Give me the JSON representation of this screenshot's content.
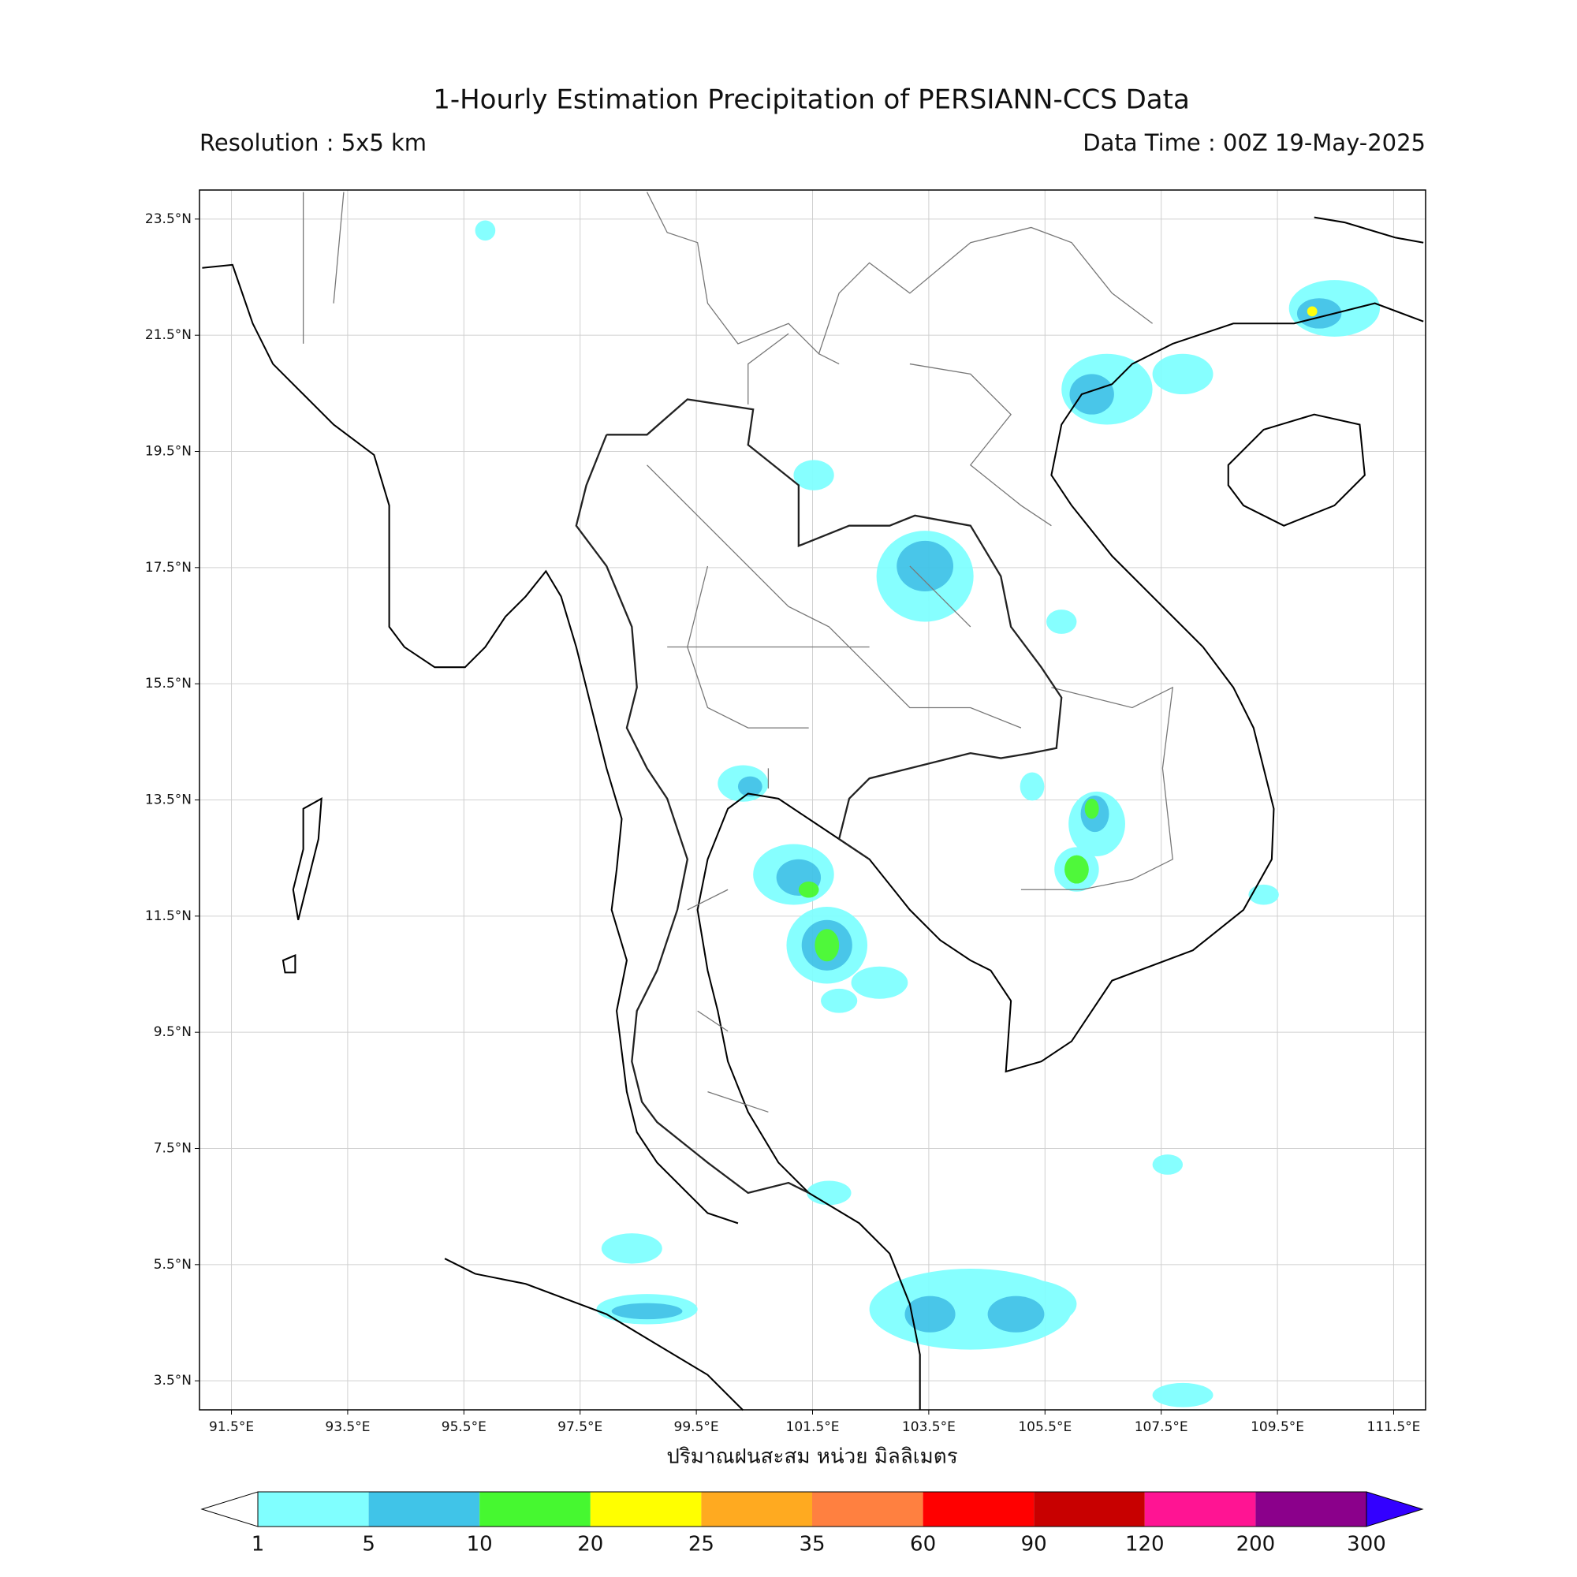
{
  "title": "1-Hourly Estimation Precipitation of PERSIANN-CCS Data",
  "resolution": "Resolution : 5x5 km",
  "data_time": "Data Time : 00Z 19-May-2025",
  "map": {
    "xlim": [
      90.95,
      112.05
    ],
    "ylim": [
      3.0,
      24.0
    ],
    "grid": true,
    "xticks": [
      {
        "value": 91.5,
        "label": "91.5°E"
      },
      {
        "value": 93.5,
        "label": "93.5°E"
      },
      {
        "value": 95.5,
        "label": "95.5°E"
      },
      {
        "value": 97.5,
        "label": "97.5°E"
      },
      {
        "value": 99.5,
        "label": "99.5°E"
      },
      {
        "value": 101.5,
        "label": "101.5°E"
      },
      {
        "value": 103.5,
        "label": "103.5°E"
      },
      {
        "value": 105.5,
        "label": "105.5°E"
      },
      {
        "value": 107.5,
        "label": "107.5°E"
      },
      {
        "value": 109.5,
        "label": "109.5°E"
      },
      {
        "value": 111.5,
        "label": "111.5°E"
      }
    ],
    "yticks": [
      {
        "value": 3.5,
        "label": "3.5°N"
      },
      {
        "value": 5.5,
        "label": "5.5°N"
      },
      {
        "value": 7.5,
        "label": "7.5°N"
      },
      {
        "value": 9.5,
        "label": "9.5°N"
      },
      {
        "value": 11.5,
        "label": "11.5°N"
      },
      {
        "value": 13.5,
        "label": "13.5°N"
      },
      {
        "value": 15.5,
        "label": "15.5°N"
      },
      {
        "value": 17.5,
        "label": "17.5°N"
      },
      {
        "value": 19.5,
        "label": "19.5°N"
      },
      {
        "value": 21.5,
        "label": "21.5°N"
      },
      {
        "value": 23.5,
        "label": "23.5°N"
      }
    ]
  },
  "colorbar": {
    "label": "ปริมาณฝนสะสม หน่วย มิลลิเมตร",
    "levels": [
      1,
      5,
      10,
      20,
      25,
      35,
      60,
      90,
      120,
      200,
      300
    ],
    "colors": [
      "#80ffff",
      "#40c4e8",
      "#46f830",
      "#ffff00",
      "#ffaa20",
      "#ff8040",
      "#ff0000",
      "#c80000",
      "#ff1493",
      "#8b008b"
    ],
    "under_color": "#ffffff",
    "over_color": "#3300ff"
  }
}
